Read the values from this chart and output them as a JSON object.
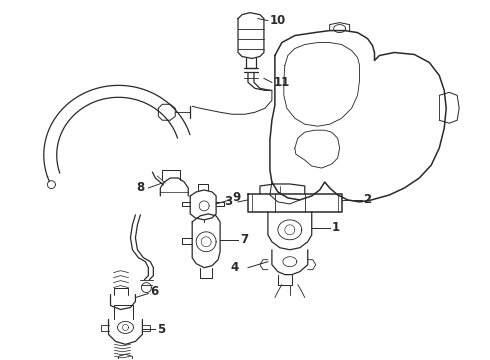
{
  "background_color": "#ffffff",
  "line_color": "#2a2a2a",
  "label_color": "#000000",
  "label_fontsize": 8.5,
  "fig_width": 4.9,
  "fig_height": 3.6,
  "dpi": 100
}
